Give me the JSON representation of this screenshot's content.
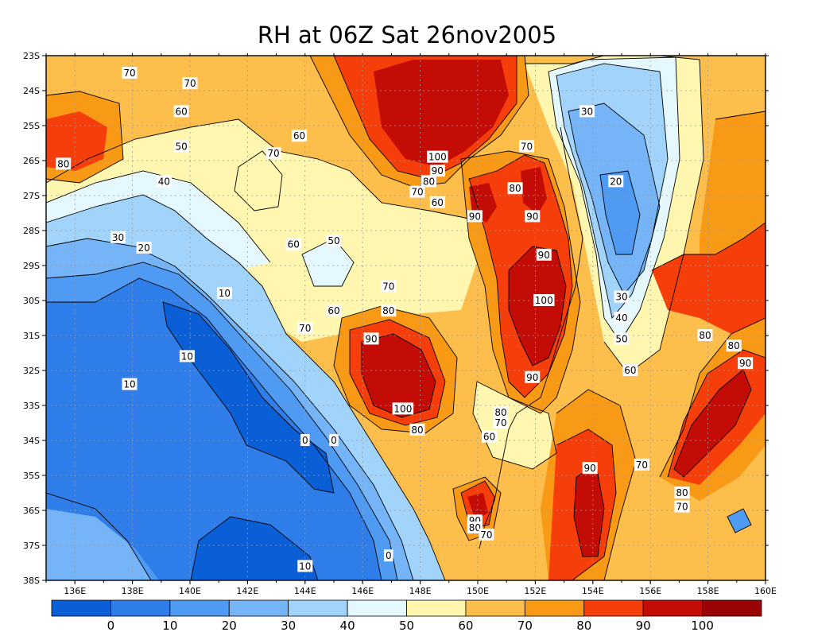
{
  "title": "RH at 06Z Sat 26nov2005",
  "colors": {
    "c0": "#0a5fd6",
    "c10": "#2f7de8",
    "c20": "#4f9af2",
    "c30": "#74b4f7",
    "c40": "#a2d4fb",
    "c50": "#e4f8fd",
    "c60": "#fff6b0",
    "c70": "#fdbe4c",
    "c80": "#f99a17",
    "c90": "#f63e0b",
    "c100": "#c40c07",
    "c110": "#9a0303"
  },
  "map": {
    "x_ticks": [
      "136E",
      "138E",
      "140E",
      "142E",
      "144E",
      "146E",
      "148E",
      "150E",
      "152E",
      "154E",
      "156E",
      "158E",
      "160E"
    ],
    "y_ticks": [
      "23S",
      "24S",
      "25S",
      "26S",
      "27S",
      "28S",
      "29S",
      "30S",
      "31S",
      "32S",
      "33S",
      "34S",
      "35S",
      "36S",
      "37S",
      "38S"
    ]
  },
  "colorbar": {
    "labels": [
      "0",
      "10",
      "20",
      "30",
      "40",
      "50",
      "60",
      "70",
      "80",
      "90",
      "100"
    ]
  },
  "contour_labels": [
    {
      "text": "70",
      "lon": 137.9,
      "lat": 23.5
    },
    {
      "text": "70",
      "lon": 140.0,
      "lat": 23.8
    },
    {
      "text": "60",
      "lon": 139.7,
      "lat": 24.6
    },
    {
      "text": "60",
      "lon": 143.8,
      "lat": 25.3
    },
    {
      "text": "50",
      "lon": 139.7,
      "lat": 25.6
    },
    {
      "text": "70",
      "lon": 142.9,
      "lat": 25.8
    },
    {
      "text": "80",
      "lon": 135.6,
      "lat": 26.1
    },
    {
      "text": "40",
      "lon": 139.1,
      "lat": 26.6
    },
    {
      "text": "30",
      "lon": 137.5,
      "lat": 28.2
    },
    {
      "text": "20",
      "lon": 138.4,
      "lat": 28.5
    },
    {
      "text": "60",
      "lon": 143.6,
      "lat": 28.4
    },
    {
      "text": "50",
      "lon": 145.0,
      "lat": 28.3
    },
    {
      "text": "10",
      "lon": 141.2,
      "lat": 29.8
    },
    {
      "text": "70",
      "lon": 146.9,
      "lat": 29.6
    },
    {
      "text": "60",
      "lon": 145.0,
      "lat": 30.3
    },
    {
      "text": "80",
      "lon": 146.9,
      "lat": 30.3
    },
    {
      "text": "70",
      "lon": 144.0,
      "lat": 30.8
    },
    {
      "text": "90",
      "lon": 146.3,
      "lat": 31.1
    },
    {
      "text": "10",
      "lon": 139.9,
      "lat": 31.6
    },
    {
      "text": "10",
      "lon": 137.9,
      "lat": 32.4
    },
    {
      "text": "100",
      "lon": 147.4,
      "lat": 33.1
    },
    {
      "text": "80",
      "lon": 147.9,
      "lat": 33.7
    },
    {
      "text": "0",
      "lon": 144.0,
      "lat": 34.0
    },
    {
      "text": "0",
      "lon": 145.0,
      "lat": 34.0
    },
    {
      "text": "100",
      "lon": 148.6,
      "lat": 25.9
    },
    {
      "text": "90",
      "lon": 148.6,
      "lat": 26.3
    },
    {
      "text": "80",
      "lon": 148.3,
      "lat": 26.6
    },
    {
      "text": "70",
      "lon": 147.9,
      "lat": 26.9
    },
    {
      "text": "60",
      "lon": 148.6,
      "lat": 27.2
    },
    {
      "text": "90",
      "lon": 149.9,
      "lat": 27.6
    },
    {
      "text": "80",
      "lon": 151.3,
      "lat": 26.8
    },
    {
      "text": "70",
      "lon": 151.7,
      "lat": 25.6
    },
    {
      "text": "90",
      "lon": 151.9,
      "lat": 27.6
    },
    {
      "text": "90",
      "lon": 152.3,
      "lat": 28.7
    },
    {
      "text": "100",
      "lon": 152.3,
      "lat": 30.0
    },
    {
      "text": "90",
      "lon": 151.9,
      "lat": 32.2
    },
    {
      "text": "80",
      "lon": 150.8,
      "lat": 33.2
    },
    {
      "text": "70",
      "lon": 150.8,
      "lat": 33.5
    },
    {
      "text": "60",
      "lon": 150.4,
      "lat": 33.9
    },
    {
      "text": "30",
      "lon": 153.8,
      "lat": 24.6
    },
    {
      "text": "20",
      "lon": 154.8,
      "lat": 26.6
    },
    {
      "text": "30",
      "lon": 155.0,
      "lat": 29.9
    },
    {
      "text": "40",
      "lon": 155.0,
      "lat": 30.5
    },
    {
      "text": "50",
      "lon": 155.0,
      "lat": 31.1
    },
    {
      "text": "60",
      "lon": 155.3,
      "lat": 32.0
    },
    {
      "text": "80",
      "lon": 157.9,
      "lat": 31.0
    },
    {
      "text": "80",
      "lon": 158.9,
      "lat": 31.3
    },
    {
      "text": "90",
      "lon": 159.3,
      "lat": 31.8
    },
    {
      "text": "90",
      "lon": 153.9,
      "lat": 34.8
    },
    {
      "text": "70",
      "lon": 155.7,
      "lat": 34.7
    },
    {
      "text": "80",
      "lon": 157.1,
      "lat": 35.5
    },
    {
      "text": "70",
      "lon": 157.1,
      "lat": 35.9
    },
    {
      "text": "90",
      "lon": 149.9,
      "lat": 36.3
    },
    {
      "text": "80",
      "lon": 149.9,
      "lat": 36.5
    },
    {
      "text": "70",
      "lon": 150.3,
      "lat": 36.7
    },
    {
      "text": "10",
      "lon": 144.0,
      "lat": 37.6
    },
    {
      "text": "0",
      "lon": 146.9,
      "lat": 37.3
    }
  ]
}
